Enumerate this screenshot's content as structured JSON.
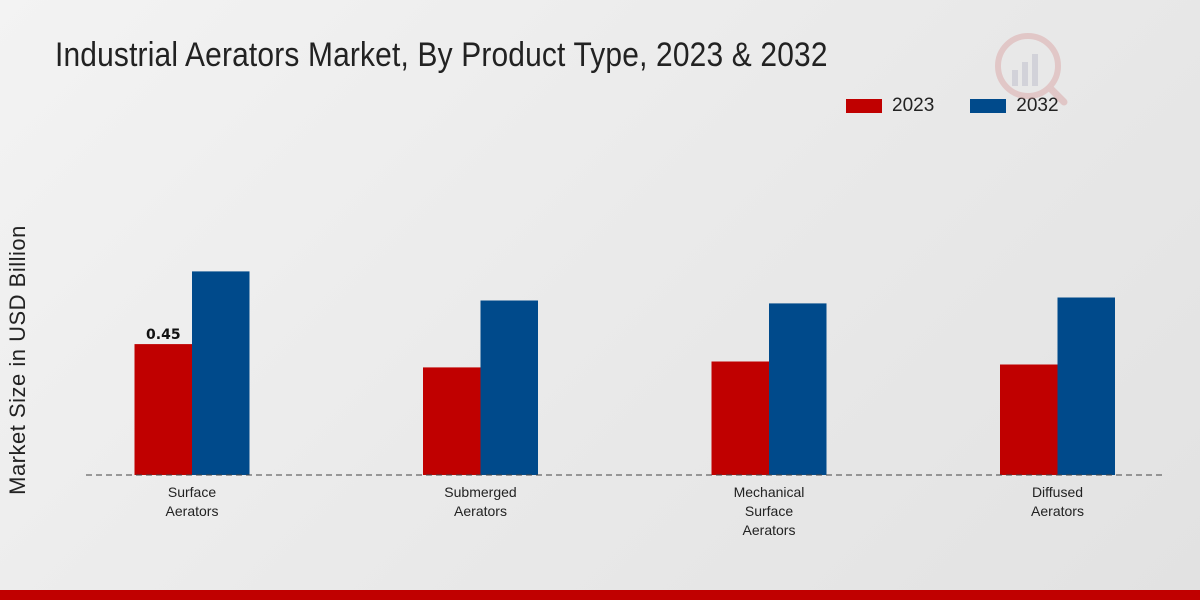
{
  "chart_data": {
    "type": "bar",
    "title": "Industrial Aerators Market, By Product Type, 2023 & 2032",
    "xlabel": "",
    "ylabel": "Market Size in USD Billion",
    "categories": [
      [
        "Surface",
        "Aerators"
      ],
      [
        "Submerged",
        "Aerators"
      ],
      [
        "Mechanical",
        "Surface",
        "Aerators"
      ],
      [
        "Diffused",
        "Aerators"
      ]
    ],
    "series": [
      {
        "name": "2023",
        "color": "#c00000",
        "values": [
          0.45,
          0.37,
          0.39,
          0.38
        ]
      },
      {
        "name": "2032",
        "color": "#004a8b",
        "values": [
          0.7,
          0.6,
          0.59,
          0.61
        ]
      }
    ],
    "data_labels": [
      {
        "series": 0,
        "category": 0,
        "text": "0.45"
      }
    ],
    "ylim": [
      0,
      1.1
    ],
    "grid": false,
    "legend_position": "top-right"
  },
  "colors": {
    "bottom_bar": "#c00000",
    "baseline": "#444444"
  }
}
